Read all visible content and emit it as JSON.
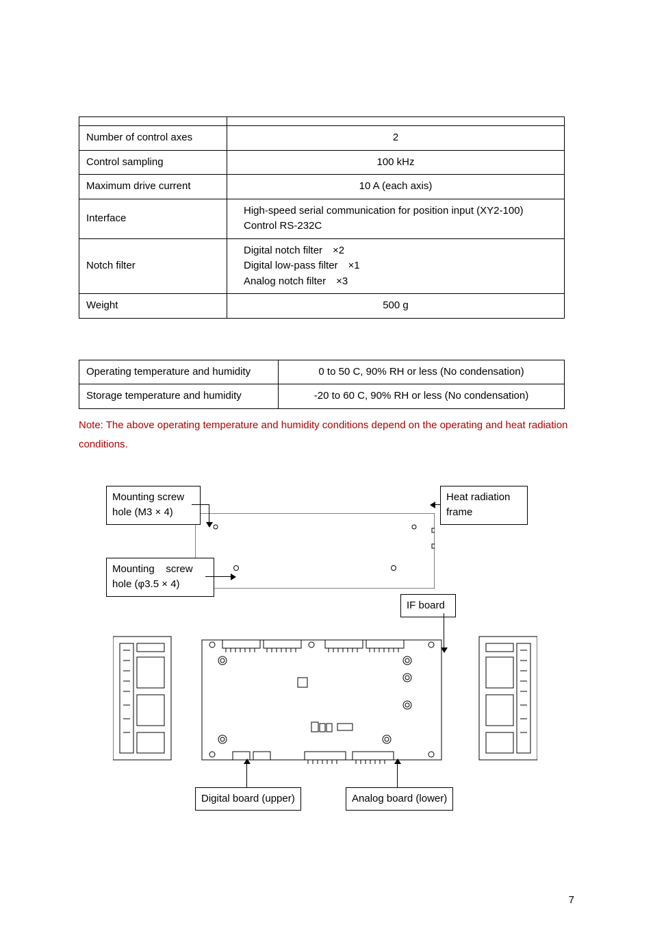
{
  "table1": {
    "rows": [
      {
        "label": "Number of control axes",
        "value": "2",
        "align": "center"
      },
      {
        "label": "Control sampling",
        "value": "100 kHz",
        "align": "center"
      },
      {
        "label": "Maximum drive current",
        "value": "10 A (each axis)",
        "align": "center"
      },
      {
        "label": "Interface",
        "value": "High-speed serial communication for position input (XY2-100)\nControl RS-232C",
        "align": "left"
      },
      {
        "label": "Notch filter",
        "value": "Digital notch filter ×2\nDigital low-pass filter ×1\nAnalog notch filter ×3",
        "align": "left"
      },
      {
        "label": "Weight",
        "value": "500 g",
        "align": "center"
      }
    ]
  },
  "table2": {
    "rows": [
      {
        "label": "Operating temperature and humidity",
        "value": "0 to 50 C, 90% RH or less (No condensation)"
      },
      {
        "label": "Storage temperature and humidity",
        "value": "-20 to 60 C, 90% RH or less (No condensation)"
      }
    ]
  },
  "note_text": "Note: The above operating temperature and humidity conditions depend on the operating and heat radiation conditions.",
  "labels": {
    "mounting_m3": "Mounting screw\nhole (M3 × 4)",
    "heat_frame": "Heat radiation\nframe",
    "mounting_phi": "Mounting    screw\nhole (φ3.5 × 4)",
    "if_board": "IF board",
    "digital_board": "Digital board (upper)",
    "analog_board": "Analog board (lower)"
  },
  "page_number": "7"
}
